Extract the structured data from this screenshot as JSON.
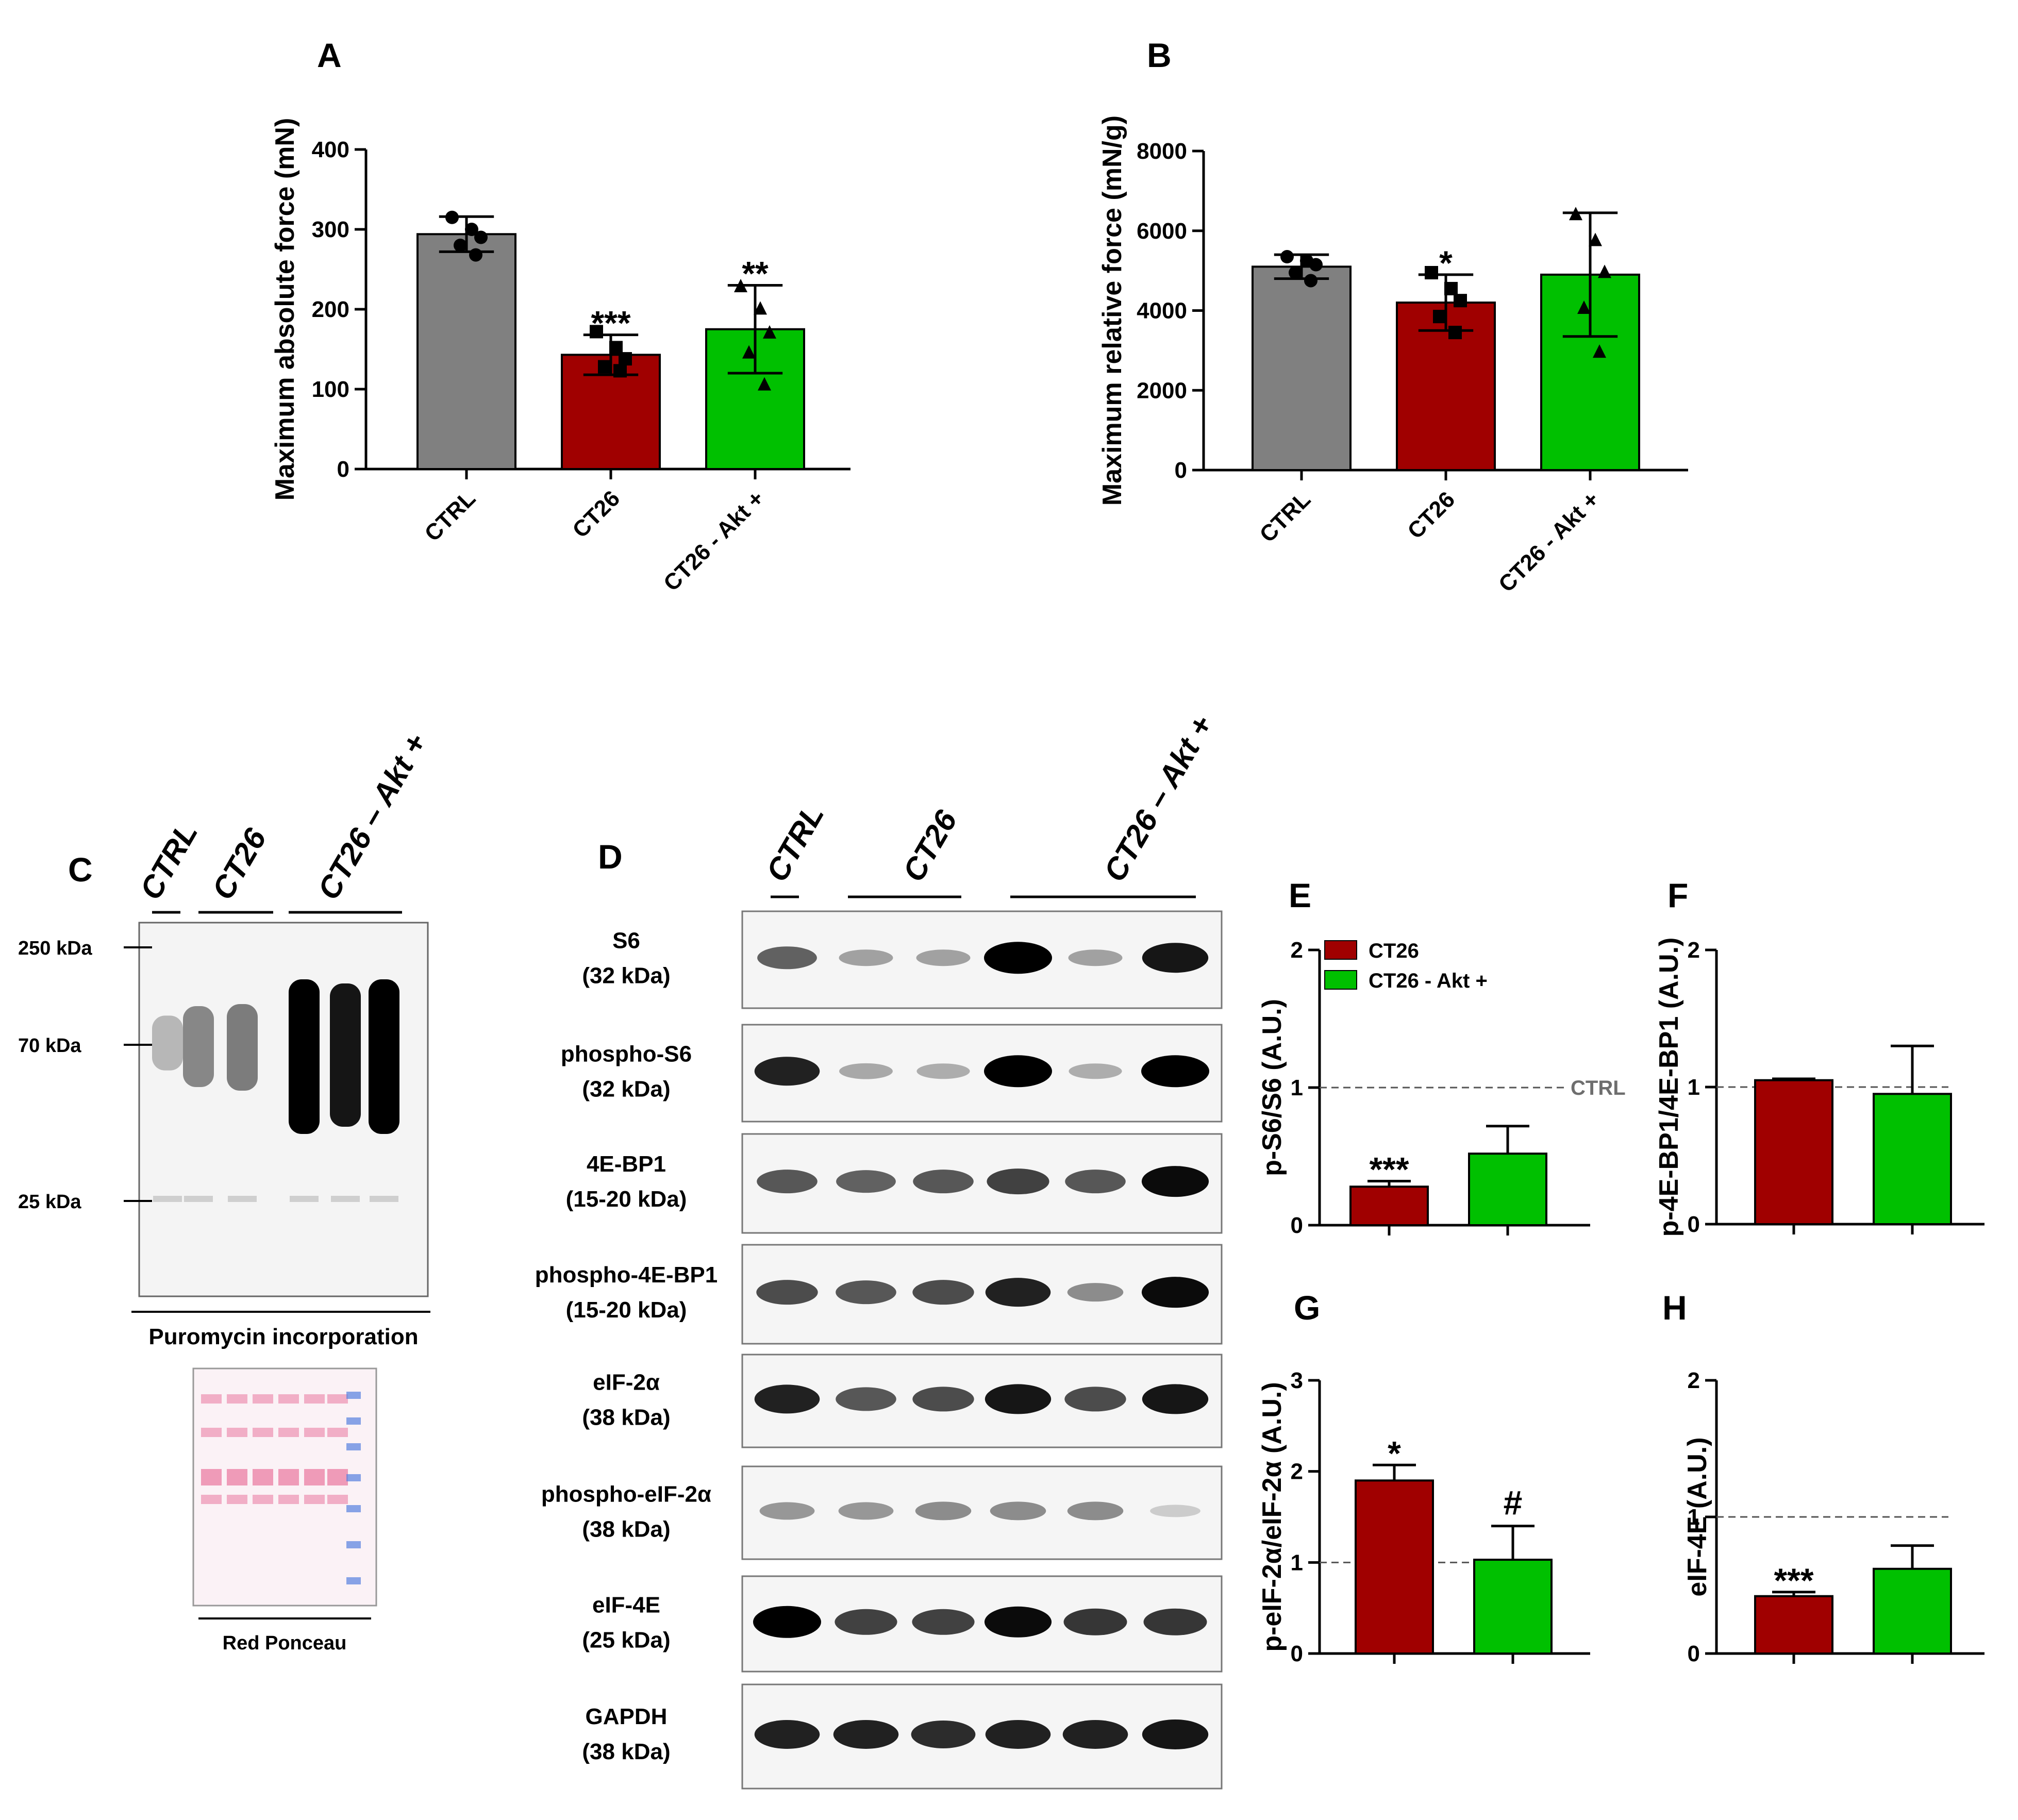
{
  "chart_data": [
    {
      "panel": "A",
      "type": "bar",
      "categories": [
        "CTRL",
        "CT26",
        "CT26 - Akt +"
      ],
      "values": [
        294,
        143,
        175
      ],
      "errors": [
        22,
        25,
        55
      ],
      "points": [
        [
          315,
          300,
          290,
          280,
          268
        ],
        [
          172,
          152,
          138,
          128,
          123
        ],
        [
          228,
          200,
          170,
          145,
          105
        ]
      ],
      "markers": [
        "circle",
        "square",
        "triangle"
      ],
      "colors": [
        "#808080",
        "#a00000",
        "#00c000"
      ],
      "significance": [
        "",
        "***",
        "**"
      ],
      "ylabel": "Maximum absolute force (mN)",
      "ylim": [
        0,
        400
      ],
      "yticks": [
        "0",
        "100",
        "200",
        "300",
        "400"
      ]
    },
    {
      "panel": "B",
      "type": "bar",
      "categories": [
        "CTRL",
        "CT26",
        "CT26 - Akt +"
      ],
      "values": [
        5100,
        4200,
        4900
      ],
      "errors": [
        300,
        700,
        1550
      ],
      "points": [
        [
          5350,
          5250,
          5150,
          4950,
          4750
        ],
        [
          4950,
          4550,
          4250,
          3850,
          3450
        ],
        [
          6400,
          5750,
          4950,
          4050,
          2950
        ]
      ],
      "markers": [
        "circle",
        "square",
        "triangle"
      ],
      "colors": [
        "#808080",
        "#a00000",
        "#00c000"
      ],
      "significance": [
        "",
        "*",
        ""
      ],
      "ylabel": "Maximum relative force (mN/g)",
      "ylim": [
        0,
        8000
      ],
      "yticks": [
        "0",
        "2000",
        "4000",
        "6000",
        "8000"
      ]
    },
    {
      "panel": "E",
      "type": "bar",
      "categories": [
        "CT26",
        "CT26 - Akt +"
      ],
      "values": [
        0.28,
        0.52
      ],
      "errors": [
        0.04,
        0.2
      ],
      "colors": [
        "#a00000",
        "#00c000"
      ],
      "significance": [
        "***",
        ""
      ],
      "reference": 1,
      "reference_label": "CTRL",
      "ylabel": "p-S6/S6 (A.U.)",
      "ylim": [
        0,
        2
      ],
      "yticks": [
        "0",
        "1",
        "2"
      ],
      "legend": [
        "CT26",
        "CT26 - Akt +"
      ]
    },
    {
      "panel": "F",
      "type": "bar",
      "categories": [
        "CT26",
        "CT26 - Akt +"
      ],
      "values": [
        1.05,
        0.95
      ],
      "errors": [
        0.01,
        0.35
      ],
      "colors": [
        "#a00000",
        "#00c000"
      ],
      "significance": [
        "",
        ""
      ],
      "reference": 1,
      "ylabel": "p-4E-BP1/4E-BP1 (A.U.)",
      "ylim": [
        0,
        2
      ],
      "yticks": [
        "0",
        "1",
        "2"
      ]
    },
    {
      "panel": "G",
      "type": "bar",
      "categories": [
        "CT26",
        "CT26 - Akt +"
      ],
      "values": [
        1.9,
        1.03
      ],
      "errors": [
        0.17,
        0.37
      ],
      "colors": [
        "#a00000",
        "#00c000"
      ],
      "significance": [
        "*",
        "#"
      ],
      "reference": 1,
      "ylabel": "p-eIF-2α/eIF-2α (A.U.)",
      "ylim": [
        0,
        3
      ],
      "yticks": [
        "0",
        "1",
        "2",
        "3"
      ]
    },
    {
      "panel": "H",
      "type": "bar",
      "categories": [
        "CT26",
        "CT26 - Akt +"
      ],
      "values": [
        0.42,
        0.62
      ],
      "errors": [
        0.03,
        0.17
      ],
      "colors": [
        "#a00000",
        "#00c000"
      ],
      "significance": [
        "***",
        ""
      ],
      "reference": 1,
      "ylabel": "eIF-4E (A.U.)",
      "ylim": [
        0,
        2
      ],
      "yticks": [
        "0",
        "1",
        "2"
      ]
    }
  ],
  "panel_c": {
    "letter": "C",
    "groups": [
      "CTRL",
      "CT26",
      "CT26 – Akt +"
    ],
    "markers": [
      "250 kDa",
      "70 kDa",
      "25 kDa"
    ],
    "caption": "Puromycin incorporation",
    "ponceau_caption": "Red Ponceau"
  },
  "panel_d": {
    "letter": "D",
    "groups": [
      "CTRL",
      "CT26",
      "CT26 – Akt +"
    ],
    "blots": [
      {
        "name": "S6",
        "mw": "(32 kDa)",
        "intensity": [
          0.55,
          0.25,
          0.25,
          1.0,
          0.25,
          0.9
        ]
      },
      {
        "name": "phospho-S6",
        "mw": "(32 kDa)",
        "intensity": [
          0.85,
          0.22,
          0.2,
          1.0,
          0.2,
          1.0
        ]
      },
      {
        "name": "4E-BP1",
        "mw": "(15-20 kDa)",
        "intensity": [
          0.6,
          0.55,
          0.6,
          0.7,
          0.6,
          0.95
        ]
      },
      {
        "name": "phospho-4E-BP1",
        "mw": "(15-20 kDa)",
        "intensity": [
          0.65,
          0.6,
          0.65,
          0.85,
          0.35,
          0.95
        ]
      },
      {
        "name": "eIF-2α",
        "mw": "(38 kDa)",
        "intensity": [
          0.85,
          0.6,
          0.65,
          0.9,
          0.65,
          0.9
        ]
      },
      {
        "name": "phospho-eIF-2α",
        "mw": "(38 kDa)",
        "intensity": [
          0.3,
          0.3,
          0.35,
          0.35,
          0.35,
          0.05
        ]
      },
      {
        "name": "eIF-4E",
        "mw": "(25 kDa)",
        "intensity": [
          1.0,
          0.7,
          0.7,
          0.95,
          0.75,
          0.75
        ]
      },
      {
        "name": "GAPDH",
        "mw": "(38 kDa)",
        "intensity": [
          0.85,
          0.85,
          0.8,
          0.85,
          0.85,
          0.9
        ]
      }
    ]
  }
}
